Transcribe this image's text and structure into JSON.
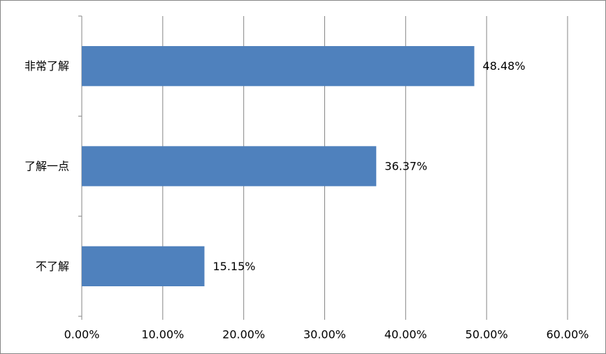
{
  "chart_data": {
    "type": "bar",
    "orientation": "horizontal",
    "categories": [
      "非常了解",
      "了解一点",
      "不了解"
    ],
    "values": [
      48.48,
      36.37,
      15.15
    ],
    "value_labels": [
      "48.48%",
      "36.37%",
      "15.15%"
    ],
    "color": "#4f81bd",
    "xlim": [
      0,
      60
    ],
    "xticks": [
      {
        "value": 0,
        "label": "0.00%"
      },
      {
        "value": 10,
        "label": "10.00%"
      },
      {
        "value": 20,
        "label": "20.00%"
      },
      {
        "value": 30,
        "label": "30.00%"
      },
      {
        "value": 40,
        "label": "40.00%"
      },
      {
        "value": 50,
        "label": "50.00%"
      },
      {
        "value": 60,
        "label": "60.00%"
      }
    ],
    "grid": true
  }
}
